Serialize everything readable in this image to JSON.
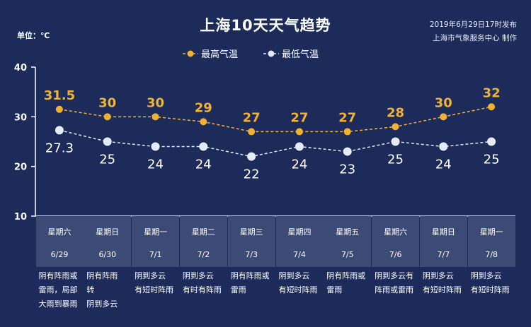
{
  "header": {
    "title": "上海10天天气趋势",
    "unit": "单位：℃",
    "publish_time": "2019年6月29日17时发布",
    "publisher": "上海市气象服务中心 制作"
  },
  "colors": {
    "background": "#1c2b5a",
    "high": "#f0b233",
    "low": "#e4ecfb",
    "day_cell": "#3b4b75"
  },
  "chart_data": {
    "type": "line",
    "title": "上海10天天气趋势",
    "ylabel": "单位：℃",
    "ylim": [
      10,
      40
    ],
    "yticks": [
      "40",
      "30",
      "20",
      "10"
    ],
    "legend": "top-center",
    "grid": false,
    "categories": [
      "6/29",
      "6/30",
      "7/1",
      "7/2",
      "7/3",
      "7/4",
      "7/5",
      "7/6",
      "7/7",
      "7/8"
    ],
    "series": [
      {
        "name": "最高气温",
        "values": [
          31.5,
          30,
          30,
          29,
          27,
          27,
          27,
          28,
          30,
          32
        ],
        "labels": [
          "31.5",
          "30",
          "30",
          "29",
          "27",
          "27",
          "27",
          "28",
          "30",
          "32"
        ]
      },
      {
        "name": "最低气温",
        "values": [
          27.3,
          25,
          24,
          24,
          22,
          24,
          23,
          25,
          24,
          25
        ],
        "labels": [
          "27.3",
          "25",
          "24",
          "24",
          "22",
          "24",
          "23",
          "25",
          "24",
          "25"
        ]
      }
    ]
  },
  "days": [
    {
      "weekday": "星期六",
      "date": "6/29",
      "weather": "阴有阵雨或\n雷雨，局部\n大雨到暴雨"
    },
    {
      "weekday": "星期日",
      "date": "6/30",
      "weather": "阴有阵雨\n转\n阴到多云"
    },
    {
      "weekday": "星期一",
      "date": "7/1",
      "weather": "阴到多云\n有短时阵雨"
    },
    {
      "weekday": "星期二",
      "date": "7/2",
      "weather": "阴到多云\n有时有阵雨"
    },
    {
      "weekday": "星期三",
      "date": "7/3",
      "weather": "阴有阵雨或\n雷雨"
    },
    {
      "weekday": "星期四",
      "date": "7/4",
      "weather": "阴到多云\n有短时阵雨"
    },
    {
      "weekday": "星期五",
      "date": "7/5",
      "weather": "阴有阵雨或\n雷雨"
    },
    {
      "weekday": "星期六",
      "date": "7/6",
      "weather": "阴到多云有\n阵雨或雷雨"
    },
    {
      "weekday": "星期日",
      "date": "7/7",
      "weather": "阴到多云\n有短时阵雨"
    },
    {
      "weekday": "星期一",
      "date": "7/8",
      "weather": "阴到多云\n有短时阵雨"
    }
  ]
}
